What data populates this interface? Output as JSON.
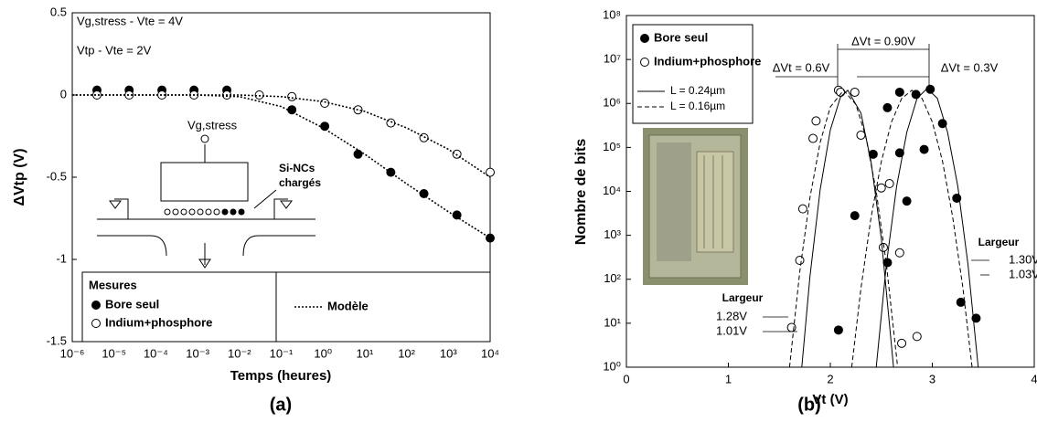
{
  "chart_data": [
    {
      "type": "scatter",
      "label": "(a)",
      "xlabel": "Temps (heures)",
      "ylabel": "ΔVtp (V)",
      "xscale": "log",
      "yscale": "linear",
      "grid": false,
      "xlim": [
        1e-06,
        10000
      ],
      "ylim": [
        -1.5,
        0.5
      ],
      "xticks": [
        {
          "value": 1e-06,
          "label": "10⁻⁶"
        },
        {
          "value": 1e-05,
          "label": "10⁻⁵"
        },
        {
          "value": 0.0001,
          "label": "10⁻⁴"
        },
        {
          "value": 0.001,
          "label": "10⁻³"
        },
        {
          "value": 0.01,
          "label": "10⁻²"
        },
        {
          "value": 0.1,
          "label": "10⁻¹"
        },
        {
          "value": 1,
          "label": "10⁰"
        },
        {
          "value": 10,
          "label": "10¹"
        },
        {
          "value": 100,
          "label": "10²"
        },
        {
          "value": 1000,
          "label": "10³"
        },
        {
          "value": 10000,
          "label": "10⁴"
        }
      ],
      "yticks": [
        -1.5,
        -1,
        -0.5,
        0,
        0.5
      ],
      "legend_title": "Mesures",
      "annotations": [
        "Vg,stress - Vte = 4V",
        "Vtp - Vte = 2V",
        "Vg,stress",
        "Si-NCs",
        "chargés"
      ],
      "series": [
        {
          "name": "Bore seul",
          "color": "#000000",
          "marker": "filled",
          "x": [
            3.9e-06,
            2.3e-05,
            0.00014,
            0.00082,
            0.005,
            0.18,
            1.1,
            6.9,
            42,
            260,
            1600,
            10000
          ],
          "values": [
            0.03,
            0.03,
            0.03,
            0.03,
            0.03,
            -0.09,
            -0.19,
            -0.36,
            -0.47,
            -0.6,
            -0.73,
            -0.87
          ]
        },
        {
          "name": "Indium+phosphore",
          "color": "#000000",
          "marker": "open",
          "x": [
            3.9e-06,
            2.3e-05,
            0.00014,
            0.00082,
            0.005,
            0.03,
            0.18,
            1.1,
            6.9,
            42,
            260,
            1600,
            10000
          ],
          "values": [
            0,
            0,
            0,
            0,
            0,
            0,
            -0.01,
            -0.05,
            -0.09,
            -0.17,
            -0.26,
            -0.36,
            -0.47
          ]
        },
        {
          "name": "Modèle",
          "color": "#000000",
          "line": "dotted",
          "x": [
            1e-06,
            0.001,
            0.01,
            0.1,
            1,
            10,
            100,
            1000,
            10000
          ],
          "values": [
            0,
            0,
            -0.01,
            -0.07,
            -0.2,
            -0.36,
            -0.54,
            -0.71,
            -0.87
          ]
        },
        {
          "name": "Modèle",
          "color": "#000000",
          "line": "dotted",
          "x": [
            1e-06,
            0.001,
            0.01,
            0.1,
            1,
            10,
            100,
            1000,
            10000
          ],
          "values": [
            0,
            0,
            0,
            -0.01,
            -0.04,
            -0.1,
            -0.2,
            -0.33,
            -0.5
          ]
        }
      ]
    },
    {
      "type": "scatter",
      "label": "(b)",
      "xlabel": "Vt (V)",
      "ylabel": "Nombre de bits",
      "xscale": "linear",
      "yscale": "log",
      "grid": false,
      "xlim": [
        0,
        4
      ],
      "ylim": [
        1,
        100000000
      ],
      "xticks": [
        0,
        1,
        2,
        3,
        4
      ],
      "yticks": [
        {
          "value": 1,
          "label": "10⁰"
        },
        {
          "value": 10,
          "label": "10¹"
        },
        {
          "value": 100,
          "label": "10²"
        },
        {
          "value": 1000,
          "label": "10³"
        },
        {
          "value": 10000,
          "label": "10⁴"
        },
        {
          "value": 100000,
          "label": "10⁵"
        },
        {
          "value": 1000000,
          "label": "10⁶"
        },
        {
          "value": 10000000,
          "label": "10⁷"
        },
        {
          "value": 100000000,
          "label": "10⁸"
        }
      ],
      "annotations": [
        "ΔVt = 0.90V",
        "ΔVt = 0.6V",
        "ΔVt = 0.3V",
        "Largeur",
        "1.30V",
        "1.03V",
        "Largeur",
        "1.28V",
        "1.01V"
      ],
      "series": [
        {
          "name": "Bore seul",
          "color": "#000000",
          "marker": "filled",
          "x": [
            2.08,
            2.24,
            2.42,
            2.56,
            2.56,
            2.68,
            2.68,
            2.75,
            2.84,
            2.92,
            2.98,
            3.1,
            3.24,
            3.28,
            3.43
          ],
          "values": [
            7,
            2800,
            70000,
            800000,
            240,
            75000,
            1800000,
            6000,
            1600000,
            90000,
            2100000,
            350000,
            7000,
            30,
            13
          ]
        },
        {
          "name": "Indium+phosphore",
          "color": "#000000",
          "marker": "open",
          "x": [
            1.62,
            1.7,
            1.73,
            1.83,
            1.86,
            2.08,
            2.1,
            2.24,
            2.3,
            2.5,
            2.52,
            2.58,
            2.68,
            2.7,
            2.85
          ],
          "values": [
            8,
            270,
            4000,
            160000,
            400000,
            2000000,
            1800000,
            1800000,
            190000,
            12000,
            530,
            15000,
            400,
            3.5,
            5
          ]
        },
        {
          "name": "L = 0.24µm",
          "color": "#000000",
          "line": "solid",
          "x": [
            1.72,
            1.8,
            1.9,
            2.0,
            2.1,
            2.17,
            2.3,
            2.4,
            2.5,
            2.62,
            null,
            2.45,
            2.55,
            2.65,
            2.75,
            2.85,
            2.95,
            3.05,
            3.15,
            3.25,
            3.35,
            3.45
          ],
          "values": [
            1,
            115,
            11000,
            250000,
            1400000,
            2000000,
            600000,
            46000,
            830,
            1,
            null,
            1,
            220,
            13000,
            220000,
            1300000,
            2200000,
            1300000,
            220000,
            13000,
            220,
            1
          ]
        },
        {
          "name": "L = 0.16µm",
          "color": "#000000",
          "line": "dashed",
          "x": [
            1.6,
            1.7,
            1.8,
            1.9,
            2.0,
            2.13,
            2.25,
            2.35,
            2.45,
            2.55,
            2.66,
            null,
            2.21,
            2.3,
            2.4,
            2.5,
            2.6,
            2.7,
            2.8,
            2.9,
            3.0,
            3.1,
            3.2,
            3.3,
            3.39
          ],
          "values": [
            1,
            145,
            7200,
            130000,
            830000,
            2000000,
            950000,
            170000,
            10000,
            220,
            1,
            null,
            1,
            63,
            2600,
            48000,
            380000,
            1300000,
            2000000,
            1300000,
            380000,
            48000,
            2600,
            63,
            1
          ]
        }
      ]
    }
  ]
}
